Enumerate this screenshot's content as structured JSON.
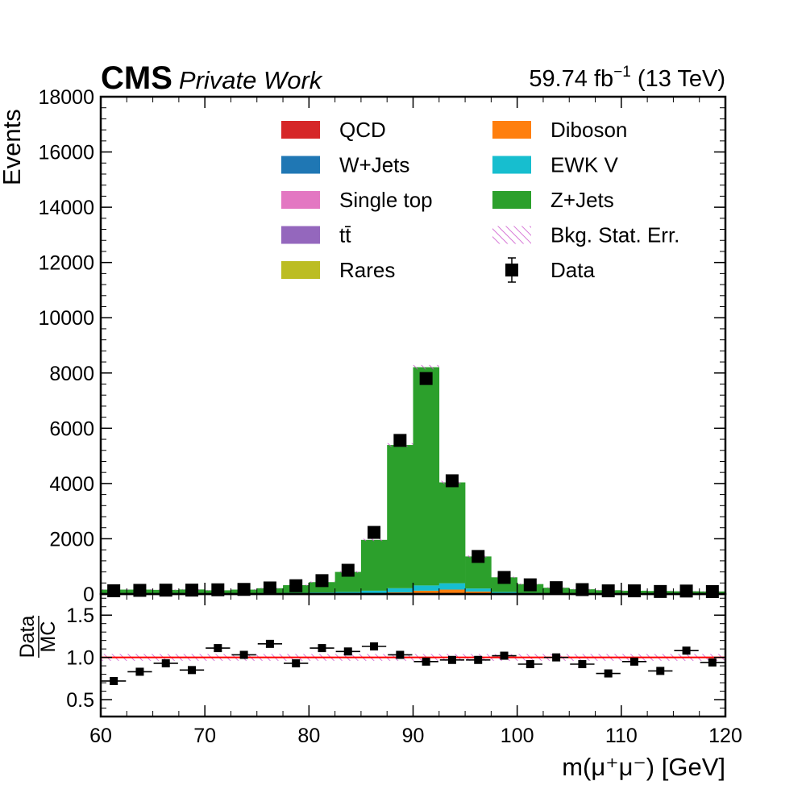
{
  "header": {
    "experiment": "CMS",
    "status": "Private Work",
    "lumi_value": "59.74 fb",
    "lumi_exp": "−1",
    "energy": " (13 TeV)"
  },
  "colors": {
    "QCD": "#d62728",
    "W+Jets": "#1f77b4",
    "Single top": "#e377c2",
    "ttbar": "#9467bd",
    "Rares": "#bcbd22",
    "Diboson": "#ff7f0e",
    "EWK V": "#17becf",
    "Z+Jets": "#2ca02c",
    "stat_err": "#cc55cc",
    "unity_line": "#ff0000"
  },
  "chart_data": {
    "type": "bar",
    "xlabel": "m(μ⁺μ⁻) [GeV]",
    "ylabel": "Events",
    "ratio_ylabel_num": "Data",
    "ratio_ylabel_den": "MC",
    "xlim": [
      60,
      120
    ],
    "ylim": [
      0,
      18000
    ],
    "ratio_ylim": [
      0.3,
      1.75
    ],
    "x_ticks": [
      "60",
      "70",
      "80",
      "90",
      "100",
      "110",
      "120"
    ],
    "y_ticks": [
      "0",
      "2000",
      "4000",
      "6000",
      "8000",
      "10000",
      "12000",
      "14000",
      "16000",
      "18000"
    ],
    "ratio_ticks": [
      "0.5",
      "1.0",
      "1.5"
    ],
    "bin_edges": [
      60,
      62.5,
      65,
      67.5,
      70,
      72.5,
      75,
      77.5,
      80,
      82.5,
      85,
      87.5,
      90,
      92.5,
      95,
      97.5,
      100,
      102.5,
      105,
      107.5,
      110,
      112.5,
      115,
      117.5,
      120
    ],
    "legend": {
      "placement": "top-center",
      "entries": [
        "QCD",
        "Diboson",
        "W+Jets",
        "EWK V",
        "Single top",
        "Z+Jets",
        "tt̄",
        "Bkg. Stat. Err.",
        "Rares",
        "Data"
      ]
    },
    "series": [
      {
        "name": "Diboson",
        "values": [
          5,
          6,
          7,
          8,
          9,
          10,
          12,
          14,
          16,
          20,
          30,
          60,
          120,
          160,
          90,
          30,
          15,
          10,
          8,
          6,
          5,
          5,
          4,
          4
        ]
      },
      {
        "name": "EWK V",
        "values": [
          10,
          12,
          14,
          16,
          18,
          20,
          25,
          30,
          40,
          55,
          90,
          150,
          190,
          230,
          110,
          45,
          25,
          18,
          14,
          12,
          10,
          9,
          8,
          8
        ]
      },
      {
        "name": "Z+Jets",
        "values": [
          145,
          142,
          129,
          141,
          108,
          130,
          172,
          276,
          375,
          725,
          1840,
          5185,
          7900,
          3650,
          1160,
          530,
          320,
          200,
          150,
          120,
          105,
          95,
          88,
          82
        ]
      },
      {
        "name": "Data",
        "values": [
          118,
          133,
          140,
          141,
          153,
          167,
          220,
          300,
          485,
          860,
          2230,
          5560,
          7800,
          4100,
          1360,
          600,
          333,
          230,
          160,
          115,
          115,
          92,
          108,
          88
        ]
      }
    ],
    "ratio": {
      "name": "Data/MC",
      "values": [
        0.72,
        0.83,
        0.93,
        0.85,
        1.11,
        1.03,
        1.16,
        0.93,
        1.11,
        1.07,
        1.13,
        1.03,
        0.95,
        0.97,
        0.97,
        1.02,
        0.92,
        1.0,
        0.92,
        0.81,
        0.95,
        0.84,
        1.08,
        0.94
      ],
      "errors": [
        0.03,
        0.03,
        0.03,
        0.03,
        0.03,
        0.03,
        0.02,
        0.02,
        0.02,
        0.015,
        0.01,
        0.01,
        0.01,
        0.01,
        0.01,
        0.015,
        0.02,
        0.02,
        0.025,
        0.03,
        0.03,
        0.03,
        0.03,
        0.03
      ]
    }
  }
}
